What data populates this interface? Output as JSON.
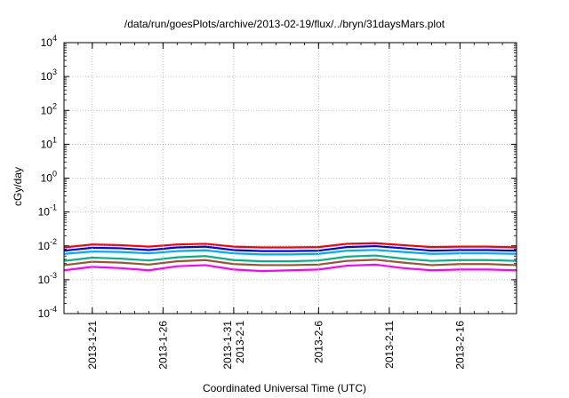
{
  "chart_data": {
    "type": "line",
    "title": "/data/run/goesPlots/archive/2013-02-19/flux/../bryn/31daysMars.plot",
    "xlabel": "Coordinated Universal Time (UTC)",
    "ylabel": "cGy/day",
    "yscale": "log",
    "ylim": [
      0.0001,
      10000
    ],
    "xlim": [
      "2013-01-19",
      "2013-02-20"
    ],
    "grid": true,
    "yticks": [
      {
        "base": "10",
        "exp": "-4",
        "value": 0.0001
      },
      {
        "base": "10",
        "exp": "-3",
        "value": 0.001
      },
      {
        "base": "10",
        "exp": "-2",
        "value": 0.01
      },
      {
        "base": "10",
        "exp": "-1",
        "value": 0.1
      },
      {
        "base": "10",
        "exp": "0",
        "value": 1
      },
      {
        "base": "10",
        "exp": "1",
        "value": 10
      },
      {
        "base": "10",
        "exp": "2",
        "value": 100
      },
      {
        "base": "10",
        "exp": "3",
        "value": 1000
      },
      {
        "base": "10",
        "exp": "4",
        "value": 10000
      }
    ],
    "xticks": [
      {
        "date": "2013-01-21",
        "labels": [
          "2013-1-21"
        ]
      },
      {
        "date": "2013-01-26",
        "labels": [
          "2013-1-26"
        ]
      },
      {
        "date": "2013-01-31",
        "labels": [
          "2013-1-31",
          "2013-2-1"
        ]
      },
      {
        "date": "2013-02-06",
        "labels": [
          "2013-2-6"
        ]
      },
      {
        "date": "2013-02-11",
        "labels": [
          "2013-2-11"
        ]
      },
      {
        "date": "2013-02-16",
        "labels": [
          "2013-2-16"
        ]
      }
    ],
    "series": [
      {
        "color": "#ff0000",
        "x": [
          "2013-01-19",
          "2013-01-21",
          "2013-01-23",
          "2013-01-25",
          "2013-01-27",
          "2013-01-29",
          "2013-01-31",
          "2013-02-02",
          "2013-02-04",
          "2013-02-06",
          "2013-02-08",
          "2013-02-10",
          "2013-02-12",
          "2013-02-14",
          "2013-02-16",
          "2013-02-18",
          "2013-02-20"
        ],
        "values": [
          0.009,
          0.011,
          0.0105,
          0.0095,
          0.011,
          0.0115,
          0.0095,
          0.009,
          0.009,
          0.0092,
          0.0115,
          0.012,
          0.0105,
          0.0092,
          0.0095,
          0.0095,
          0.009
        ]
      },
      {
        "color": "#0000ff",
        "x": [
          "2013-01-19",
          "2013-01-21",
          "2013-01-23",
          "2013-01-25",
          "2013-01-27",
          "2013-01-29",
          "2013-01-31",
          "2013-02-02",
          "2013-02-04",
          "2013-02-06",
          "2013-02-08",
          "2013-02-10",
          "2013-02-12",
          "2013-02-14",
          "2013-02-16",
          "2013-02-18",
          "2013-02-20"
        ],
        "values": [
          0.0072,
          0.0088,
          0.0085,
          0.0075,
          0.009,
          0.0095,
          0.0075,
          0.007,
          0.007,
          0.0072,
          0.0092,
          0.0098,
          0.0085,
          0.0072,
          0.0075,
          0.0075,
          0.0072
        ]
      },
      {
        "color": "#00aaff",
        "x": [
          "2013-01-19",
          "2013-01-21",
          "2013-01-23",
          "2013-01-25",
          "2013-01-27",
          "2013-01-29",
          "2013-01-31",
          "2013-02-02",
          "2013-02-04",
          "2013-02-06",
          "2013-02-08",
          "2013-02-10",
          "2013-02-12",
          "2013-02-14",
          "2013-02-16",
          "2013-02-18",
          "2013-02-20"
        ],
        "values": [
          0.0058,
          0.0068,
          0.0066,
          0.006,
          0.007,
          0.0074,
          0.006,
          0.0056,
          0.0056,
          0.0058,
          0.0072,
          0.0076,
          0.0066,
          0.0058,
          0.006,
          0.006,
          0.0058
        ]
      },
      {
        "color": "#00b38a",
        "x": [
          "2013-01-19",
          "2013-01-21",
          "2013-01-23",
          "2013-01-25",
          "2013-01-27",
          "2013-01-29",
          "2013-01-31",
          "2013-02-02",
          "2013-02-04",
          "2013-02-06",
          "2013-02-08",
          "2013-02-10",
          "2013-02-12",
          "2013-02-14",
          "2013-02-16",
          "2013-02-18",
          "2013-02-20"
        ],
        "values": [
          0.0036,
          0.0045,
          0.0042,
          0.0037,
          0.0046,
          0.005,
          0.0038,
          0.0035,
          0.0035,
          0.0037,
          0.0048,
          0.0052,
          0.0042,
          0.0036,
          0.0038,
          0.0038,
          0.0036
        ]
      },
      {
        "color": "#a0522d",
        "x": [
          "2013-01-19",
          "2013-01-21",
          "2013-01-23",
          "2013-01-25",
          "2013-01-27",
          "2013-01-29",
          "2013-01-31",
          "2013-02-02",
          "2013-02-04",
          "2013-02-06",
          "2013-02-08",
          "2013-02-10",
          "2013-02-12",
          "2013-02-14",
          "2013-02-16",
          "2013-02-18",
          "2013-02-20"
        ],
        "values": [
          0.0027,
          0.0034,
          0.0032,
          0.0028,
          0.0035,
          0.0038,
          0.0029,
          0.0027,
          0.0027,
          0.0028,
          0.0036,
          0.0039,
          0.0032,
          0.0027,
          0.0029,
          0.0029,
          0.0027
        ]
      },
      {
        "color": "#ff00ff",
        "x": [
          "2013-01-19",
          "2013-01-21",
          "2013-01-23",
          "2013-01-25",
          "2013-01-27",
          "2013-01-29",
          "2013-01-31",
          "2013-02-02",
          "2013-02-04",
          "2013-02-06",
          "2013-02-08",
          "2013-02-10",
          "2013-02-12",
          "2013-02-14",
          "2013-02-16",
          "2013-02-18",
          "2013-02-20"
        ],
        "values": [
          0.0019,
          0.0024,
          0.0022,
          0.0019,
          0.0025,
          0.0027,
          0.002,
          0.0018,
          0.0019,
          0.002,
          0.0026,
          0.0028,
          0.0022,
          0.0019,
          0.002,
          0.002,
          0.0019
        ]
      }
    ]
  }
}
